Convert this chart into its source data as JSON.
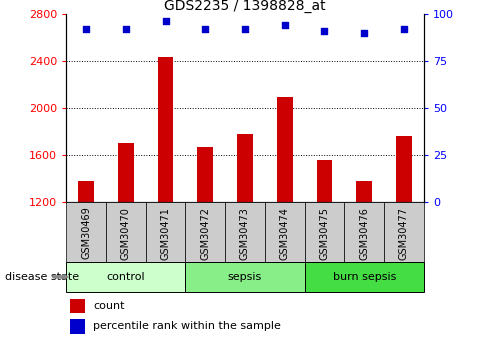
{
  "title": "GDS2235 / 1398828_at",
  "samples": [
    "GSM30469",
    "GSM30470",
    "GSM30471",
    "GSM30472",
    "GSM30473",
    "GSM30474",
    "GSM30475",
    "GSM30476",
    "GSM30477"
  ],
  "counts": [
    1380,
    1700,
    2430,
    1670,
    1780,
    2090,
    1560,
    1380,
    1760
  ],
  "percentiles": [
    92,
    92,
    96,
    92,
    92,
    94,
    91,
    90,
    92
  ],
  "groups": [
    {
      "label": "control",
      "indices": [
        0,
        1,
        2
      ],
      "color": "#ccffcc"
    },
    {
      "label": "sepsis",
      "indices": [
        3,
        4,
        5
      ],
      "color": "#88ee88"
    },
    {
      "label": "burn sepsis",
      "indices": [
        6,
        7,
        8
      ],
      "color": "#44dd44"
    }
  ],
  "ylim_left": [
    1200,
    2800
  ],
  "ylim_right": [
    0,
    100
  ],
  "yticks_left": [
    1200,
    1600,
    2000,
    2400,
    2800
  ],
  "yticks_right": [
    0,
    25,
    50,
    75,
    100
  ],
  "bar_color": "#cc0000",
  "dot_color": "#0000cc",
  "sample_box_color": "#cccccc",
  "legend_count_label": "count",
  "legend_percentile_label": "percentile rank within the sample",
  "disease_state_label": "disease state"
}
